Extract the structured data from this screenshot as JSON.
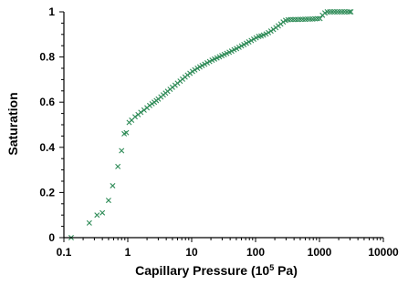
{
  "chart_data": {
    "type": "scatter",
    "title": "",
    "xlabel": "Capillary Pressure (10",
    "xlabel_sup": "5",
    "xlabel_suffix": " Pa)",
    "ylabel": "Saturation",
    "xscale": "log",
    "xlim": [
      0.1,
      10000
    ],
    "ylim": [
      0,
      1
    ],
    "xticks": [
      0.1,
      1,
      10,
      100,
      1000,
      10000
    ],
    "xtick_labels": [
      "0.1",
      "1",
      "10",
      "100",
      "1000",
      "10000"
    ],
    "yticks": [
      0,
      0.2,
      0.4,
      0.6,
      0.8,
      1
    ],
    "ytick_labels": [
      "0",
      "0.2",
      "0.4",
      "0.6",
      "0.8",
      "1"
    ],
    "grid": false,
    "legend": "none",
    "marker": "x",
    "color": "#2e8b57",
    "series": [
      {
        "x": [
          0.13,
          0.25,
          0.33,
          0.4,
          0.5,
          0.58,
          0.7,
          0.8,
          0.88,
          0.95,
          1.05,
          1.15,
          1.3,
          1.45,
          1.6,
          1.8,
          2.0,
          2.2,
          2.4,
          2.6,
          2.8,
          3.0,
          3.3,
          3.6,
          3.9,
          4.2,
          4.6,
          5.0,
          5.5,
          6.0,
          6.6,
          7.2,
          7.9,
          8.6,
          9.4,
          10.3,
          11.2,
          12.3,
          13.4,
          14.6,
          16.0,
          17.5,
          19.1,
          20.9,
          22.8,
          24.9,
          27.2,
          29.7,
          32.4,
          35.4,
          38.7,
          42.3,
          46.2,
          50.4,
          55.1,
          60.2,
          65.7,
          71.8,
          78.4,
          85.7,
          93.6,
          102,
          112,
          122,
          133,
          146,
          159,
          174,
          190,
          208,
          227,
          248,
          271,
          296,
          323,
          353,
          386,
          421,
          460,
          503,
          549,
          600,
          655,
          716,
          782,
          854,
          933,
          1019,
          1113,
          1216,
          1328,
          1451,
          1585,
          1731,
          1891,
          2065,
          2256,
          2464,
          2692,
          2940,
          3100
        ],
        "y": [
          0.0,
          0.065,
          0.1,
          0.11,
          0.165,
          0.23,
          0.315,
          0.385,
          0.46,
          0.465,
          0.51,
          0.52,
          0.535,
          0.545,
          0.555,
          0.565,
          0.575,
          0.585,
          0.593,
          0.6,
          0.607,
          0.614,
          0.623,
          0.632,
          0.64,
          0.648,
          0.657,
          0.666,
          0.675,
          0.684,
          0.693,
          0.702,
          0.711,
          0.72,
          0.728,
          0.736,
          0.743,
          0.75,
          0.756,
          0.762,
          0.768,
          0.774,
          0.78,
          0.786,
          0.791,
          0.796,
          0.801,
          0.806,
          0.811,
          0.816,
          0.821,
          0.826,
          0.832,
          0.837,
          0.843,
          0.849,
          0.855,
          0.861,
          0.867,
          0.873,
          0.879,
          0.885,
          0.891,
          0.893,
          0.897,
          0.902,
          0.908,
          0.915,
          0.922,
          0.93,
          0.938,
          0.946,
          0.955,
          0.962,
          0.965,
          0.966,
          0.966,
          0.966,
          0.966,
          0.967,
          0.967,
          0.967,
          0.968,
          0.968,
          0.968,
          0.969,
          0.97,
          0.97,
          0.985,
          0.995,
          1.0,
          1.0,
          1.0,
          1.0,
          1.0,
          1.0,
          1.0,
          1.0,
          1.0,
          1.0,
          1.0
        ]
      }
    ]
  }
}
